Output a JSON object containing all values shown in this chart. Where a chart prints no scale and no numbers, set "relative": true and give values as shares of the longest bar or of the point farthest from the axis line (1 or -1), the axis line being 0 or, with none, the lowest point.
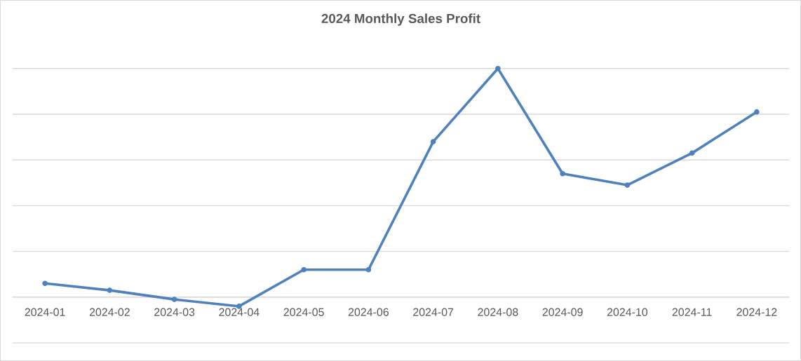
{
  "chart_data": {
    "type": "line",
    "title": "2024 Monthly Sales Profit",
    "categories": [
      "2024-01",
      "2024-02",
      "2024-03",
      "2024-04",
      "2024-05",
      "2024-06",
      "2024-07",
      "2024-08",
      "2024-09",
      "2024-10",
      "2024-11",
      "2024-12"
    ],
    "relative": true,
    "series": [
      {
        "color": "#4f81bd",
        "values": [
          0.06,
          0.03,
          -0.01,
          -0.04,
          0.12,
          0.12,
          0.68,
          1,
          0.54,
          0.49,
          0.63,
          0.81
        ]
      }
    ],
    "grid": "y",
    "marker": "circle",
    "line_style": "solid"
  }
}
